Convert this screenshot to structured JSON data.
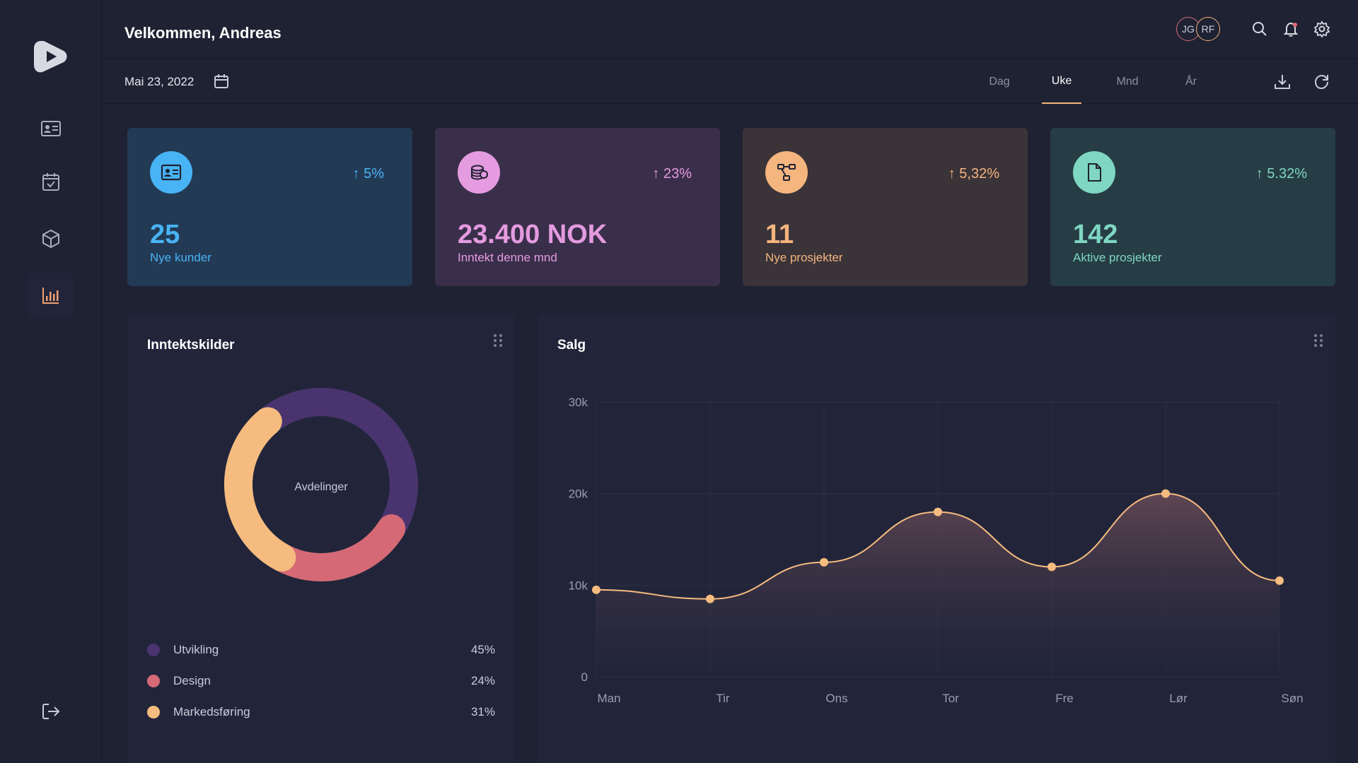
{
  "header": {
    "welcome": "Velkommen, Andreas",
    "avatars": [
      "JG",
      "RF"
    ]
  },
  "toolbar": {
    "date": "Mai 23, 2022",
    "periods": [
      "Dag",
      "Uke",
      "Mnd",
      "År"
    ],
    "active_period": "Uke"
  },
  "stats": [
    {
      "value": "25",
      "label": "Nye kunder",
      "change": "5%",
      "color": "#48b3f5",
      "bg": "#233a55",
      "icon": "id-card-icon"
    },
    {
      "value": "23.400 NOK",
      "label": "Inntekt denne mnd",
      "change": "23%",
      "color": "#e49be0",
      "bg": "#3a2f4b",
      "icon": "coins-icon"
    },
    {
      "value": "11",
      "label": "Nye prosjekter",
      "change": "5,32%",
      "color": "#f4b57e",
      "bg": "#3a3338",
      "icon": "workflow-icon"
    },
    {
      "value": "142",
      "label": "Aktive prosjekter",
      "change": "5.32%",
      "color": "#7fd6c2",
      "bg": "#263d45",
      "icon": "document-icon"
    }
  ],
  "income": {
    "title": "Inntektskilder",
    "center_label": "Avdelinger",
    "segments": [
      {
        "name": "Utvikling",
        "value": "45%",
        "color": "#4a346f"
      },
      {
        "name": "Design",
        "value": "24%",
        "color": "#d56a76"
      },
      {
        "name": "Markedsføring",
        "value": "31%",
        "color": "#f6bc7f"
      }
    ]
  },
  "sales": {
    "title": "Salg"
  },
  "chart_data": [
    {
      "type": "pie",
      "title": "Inntektskilder",
      "center_label": "Avdelinger",
      "categories": [
        "Utvikling",
        "Design",
        "Markedsføring"
      ],
      "values": [
        45,
        24,
        31
      ]
    },
    {
      "type": "area",
      "title": "Salg",
      "categories": [
        "Man",
        "Tir",
        "Ons",
        "Tor",
        "Fre",
        "Lør",
        "Søn"
      ],
      "values": [
        9500,
        8500,
        12500,
        18000,
        12000,
        20000,
        10500
      ],
      "y_ticks": [
        "0",
        "10k",
        "20k",
        "30k"
      ],
      "ylim": [
        0,
        30000
      ],
      "grid": true,
      "color": "#f6bc7f"
    }
  ]
}
